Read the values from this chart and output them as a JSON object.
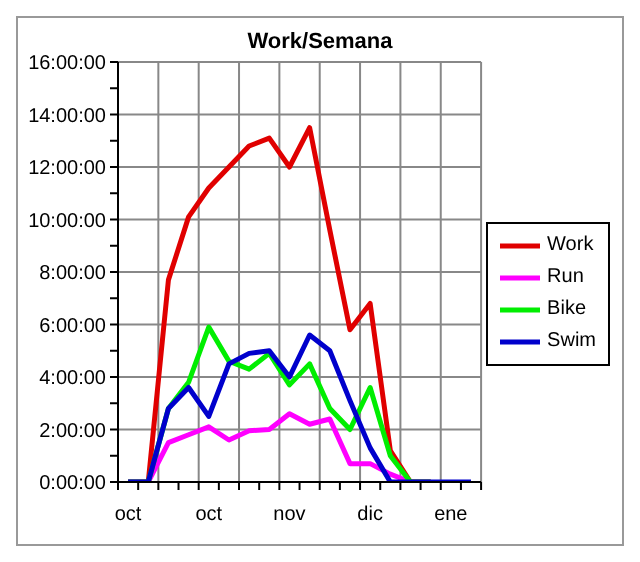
{
  "chart_data": {
    "type": "line",
    "title": "Work/Semana",
    "categories": [
      "oct",
      null,
      null,
      null,
      "oct",
      null,
      null,
      null,
      "nov",
      null,
      null,
      null,
      "dic",
      null,
      null,
      null,
      "ene",
      null
    ],
    "series": [
      {
        "name": "Work",
        "color": "#e00000",
        "values": [
          0,
          0,
          7.7,
          10.1,
          11.2,
          12,
          12.8,
          13.1,
          12,
          13.5,
          9.6,
          5.8,
          6.8,
          1.2,
          0,
          0,
          null,
          null
        ]
      },
      {
        "name": "Run",
        "color": "#ff00ff",
        "values": [
          0,
          0,
          1.5,
          1.8,
          2.1,
          1.6,
          1.95,
          2,
          2.6,
          2.2,
          2.4,
          0.7,
          0.7,
          0.3,
          0,
          0,
          null,
          null
        ]
      },
      {
        "name": "Bike",
        "color": "#00ee00",
        "values": [
          0,
          0,
          2.8,
          3.8,
          5.9,
          4.6,
          4.3,
          4.9,
          3.7,
          4.5,
          2.8,
          2,
          3.6,
          1,
          0,
          0,
          null,
          null
        ]
      },
      {
        "name": "Swim",
        "color": "#0000cc",
        "values": [
          0,
          0,
          2.8,
          3.6,
          2.5,
          4.5,
          4.9,
          5,
          4,
          5.6,
          5,
          3.1,
          1.3,
          0,
          0,
          0,
          0,
          0
        ]
      }
    ],
    "ylim": [
      0,
      16
    ],
    "yticks": [
      {
        "value": 0,
        "label": "0:00:00"
      },
      {
        "value": 1,
        "label": null
      },
      {
        "value": 2,
        "label": "2:00:00"
      },
      {
        "value": 3,
        "label": null
      },
      {
        "value": 4,
        "label": "4:00:00"
      },
      {
        "value": 5,
        "label": null
      },
      {
        "value": 6,
        "label": "6:00:00"
      },
      {
        "value": 7,
        "label": null
      },
      {
        "value": 8,
        "label": "8:00:00"
      },
      {
        "value": 9,
        "label": null
      },
      {
        "value": 10,
        "label": "10:00:00"
      },
      {
        "value": 11,
        "label": null
      },
      {
        "value": 12,
        "label": "12:00:00"
      },
      {
        "value": 13,
        "label": null
      },
      {
        "value": 14,
        "label": "14:00:00"
      },
      {
        "value": 15,
        "label": null
      },
      {
        "value": 16,
        "label": "16:00:00"
      }
    ],
    "grid": true,
    "legend": "right",
    "marker": "none",
    "line_style": "solid"
  }
}
